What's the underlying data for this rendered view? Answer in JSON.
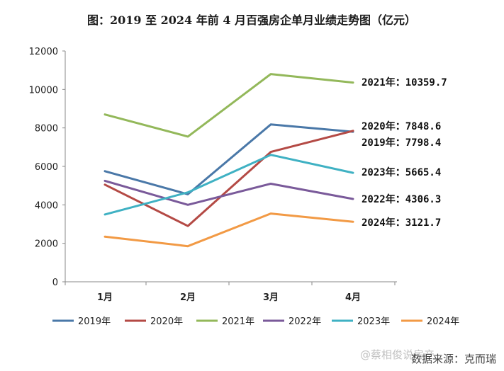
{
  "chart_data": {
    "type": "line",
    "title": "图：2019 至 2024 年前 4 月百强房企单月业绩走势图（亿元）",
    "categories": [
      "1月",
      "2月",
      "3月",
      "4月"
    ],
    "ylim": [
      0,
      12000
    ],
    "yticks": [
      0,
      2000,
      4000,
      6000,
      8000,
      10000,
      12000
    ],
    "grid": false,
    "legend_position": "bottom",
    "series": [
      {
        "name": "2019年",
        "color": "#4a78a8",
        "values": [
          5750,
          4550,
          8180,
          7798.4
        ],
        "end_label": "2019年：7798.4"
      },
      {
        "name": "2020年",
        "color": "#b44a45",
        "values": [
          5050,
          2900,
          6750,
          7848.6
        ],
        "end_label": "2020年：7848.6"
      },
      {
        "name": "2021年",
        "color": "#93b85a",
        "values": [
          8700,
          7550,
          10800,
          10359.7
        ],
        "end_label": "2021年：10359.7"
      },
      {
        "name": "2022年",
        "color": "#7a5a9a",
        "values": [
          5250,
          4000,
          5100,
          4306.3
        ],
        "end_label": "2022年：4306.3"
      },
      {
        "name": "2023年",
        "color": "#3fb1c3",
        "values": [
          3500,
          4650,
          6600,
          5665.4
        ],
        "end_label": "2023年：5665.4"
      },
      {
        "name": "2024年",
        "color": "#f29a45",
        "values": [
          2350,
          1850,
          3550,
          3121.7
        ],
        "end_label": "2024年：3121.7"
      }
    ]
  },
  "source_text": "数据来源：克而瑞",
  "watermark_text": "@蔡相俊说房产"
}
